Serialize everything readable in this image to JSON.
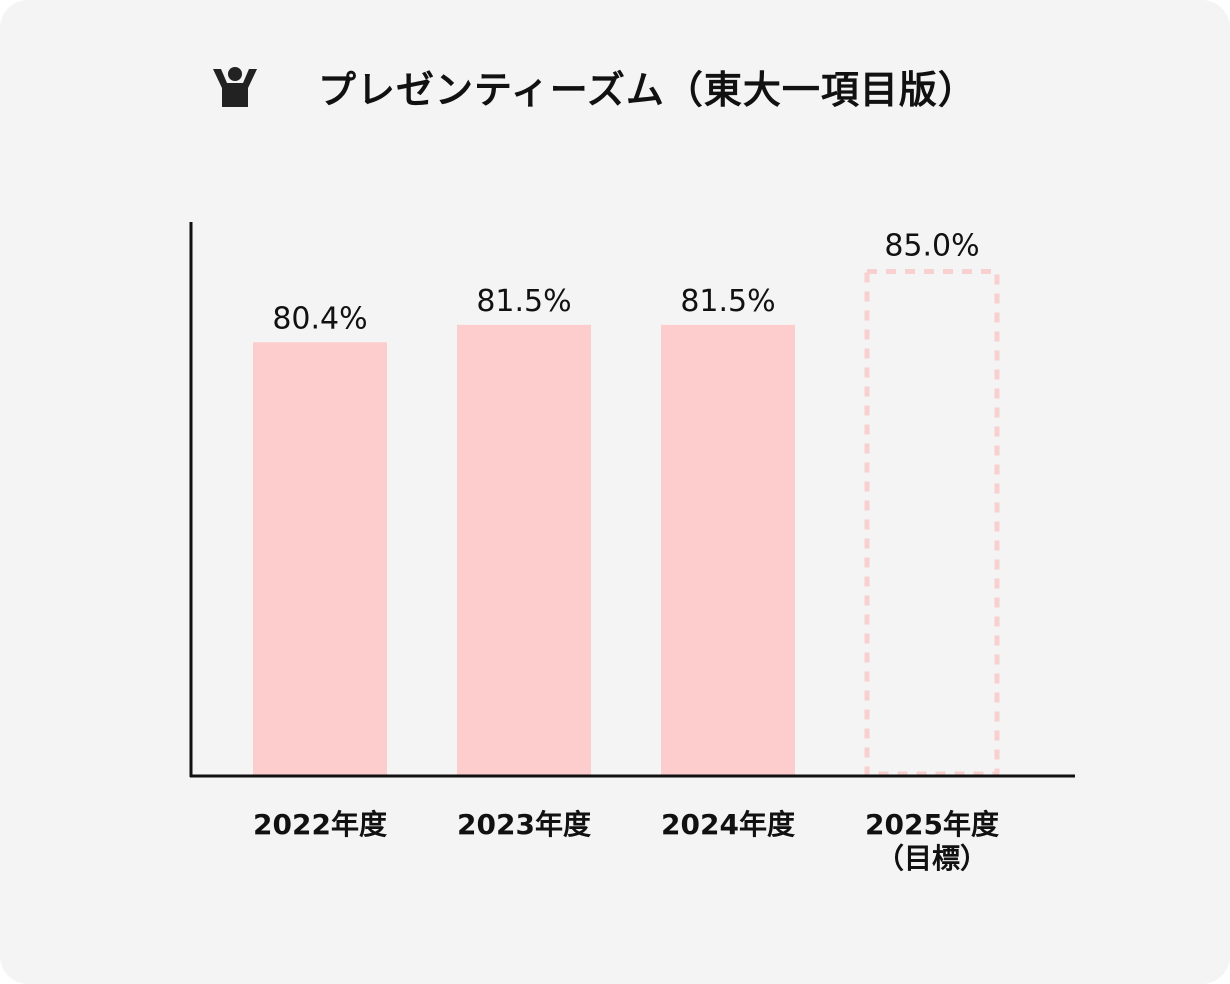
{
  "title": "プレゼンティーズム（東大一項目版）",
  "icon": "person-raising-arms-icon",
  "colors": {
    "bar": "#fdcccc",
    "target_outline": "#f9d0d0",
    "axis": "#111111",
    "background": "#f4f4f4"
  },
  "chart_data": {
    "type": "bar",
    "title": "プレゼンティーズム（東大一項目版）",
    "xlabel": "",
    "ylabel": "",
    "categories": [
      "2022年度",
      "2023年度",
      "2024年度",
      "2025年度"
    ],
    "category_notes": [
      "",
      "",
      "",
      "（目標）"
    ],
    "values": [
      80.4,
      81.5,
      81.5,
      85.0
    ],
    "value_labels": [
      "80.4%",
      "81.5%",
      "81.5%",
      "85.0%"
    ],
    "target": [
      false,
      false,
      false,
      true
    ],
    "ylim": [
      53.0,
      88.0
    ],
    "grid": false,
    "legend": "none"
  }
}
